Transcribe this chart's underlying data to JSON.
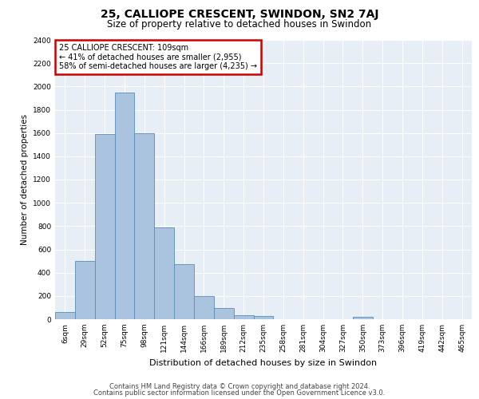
{
  "title_line1": "25, CALLIOPE CRESCENT, SWINDON, SN2 7AJ",
  "title_line2": "Size of property relative to detached houses in Swindon",
  "xlabel": "Distribution of detached houses by size in Swindon",
  "ylabel": "Number of detached properties",
  "footer_line1": "Contains HM Land Registry data © Crown copyright and database right 2024.",
  "footer_line2": "Contains public sector information licensed under the Open Government Licence v3.0.",
  "categories": [
    "6sqm",
    "29sqm",
    "52sqm",
    "75sqm",
    "98sqm",
    "121sqm",
    "144sqm",
    "166sqm",
    "189sqm",
    "212sqm",
    "235sqm",
    "258sqm",
    "281sqm",
    "304sqm",
    "327sqm",
    "350sqm",
    "373sqm",
    "396sqm",
    "419sqm",
    "442sqm",
    "465sqm"
  ],
  "values": [
    60,
    500,
    1590,
    1950,
    1600,
    790,
    470,
    200,
    95,
    35,
    30,
    0,
    0,
    0,
    0,
    20,
    0,
    0,
    0,
    0,
    0
  ],
  "bar_color": "#aac4e0",
  "bar_edge_color": "#5a8db5",
  "background_color": "#e8eef5",
  "ylim": [
    0,
    2400
  ],
  "yticks": [
    0,
    200,
    400,
    600,
    800,
    1000,
    1200,
    1400,
    1600,
    1800,
    2000,
    2200,
    2400
  ],
  "annotation_text": "25 CALLIOPE CRESCENT: 109sqm\n← 41% of detached houses are smaller (2,955)\n58% of semi-detached houses are larger (4,235) →",
  "annotation_box_color": "#cc0000",
  "title1_fontsize": 10,
  "title2_fontsize": 8.5,
  "xlabel_fontsize": 8,
  "ylabel_fontsize": 7.5,
  "tick_fontsize": 6.5,
  "annotation_fontsize": 7,
  "footer_fontsize": 6
}
